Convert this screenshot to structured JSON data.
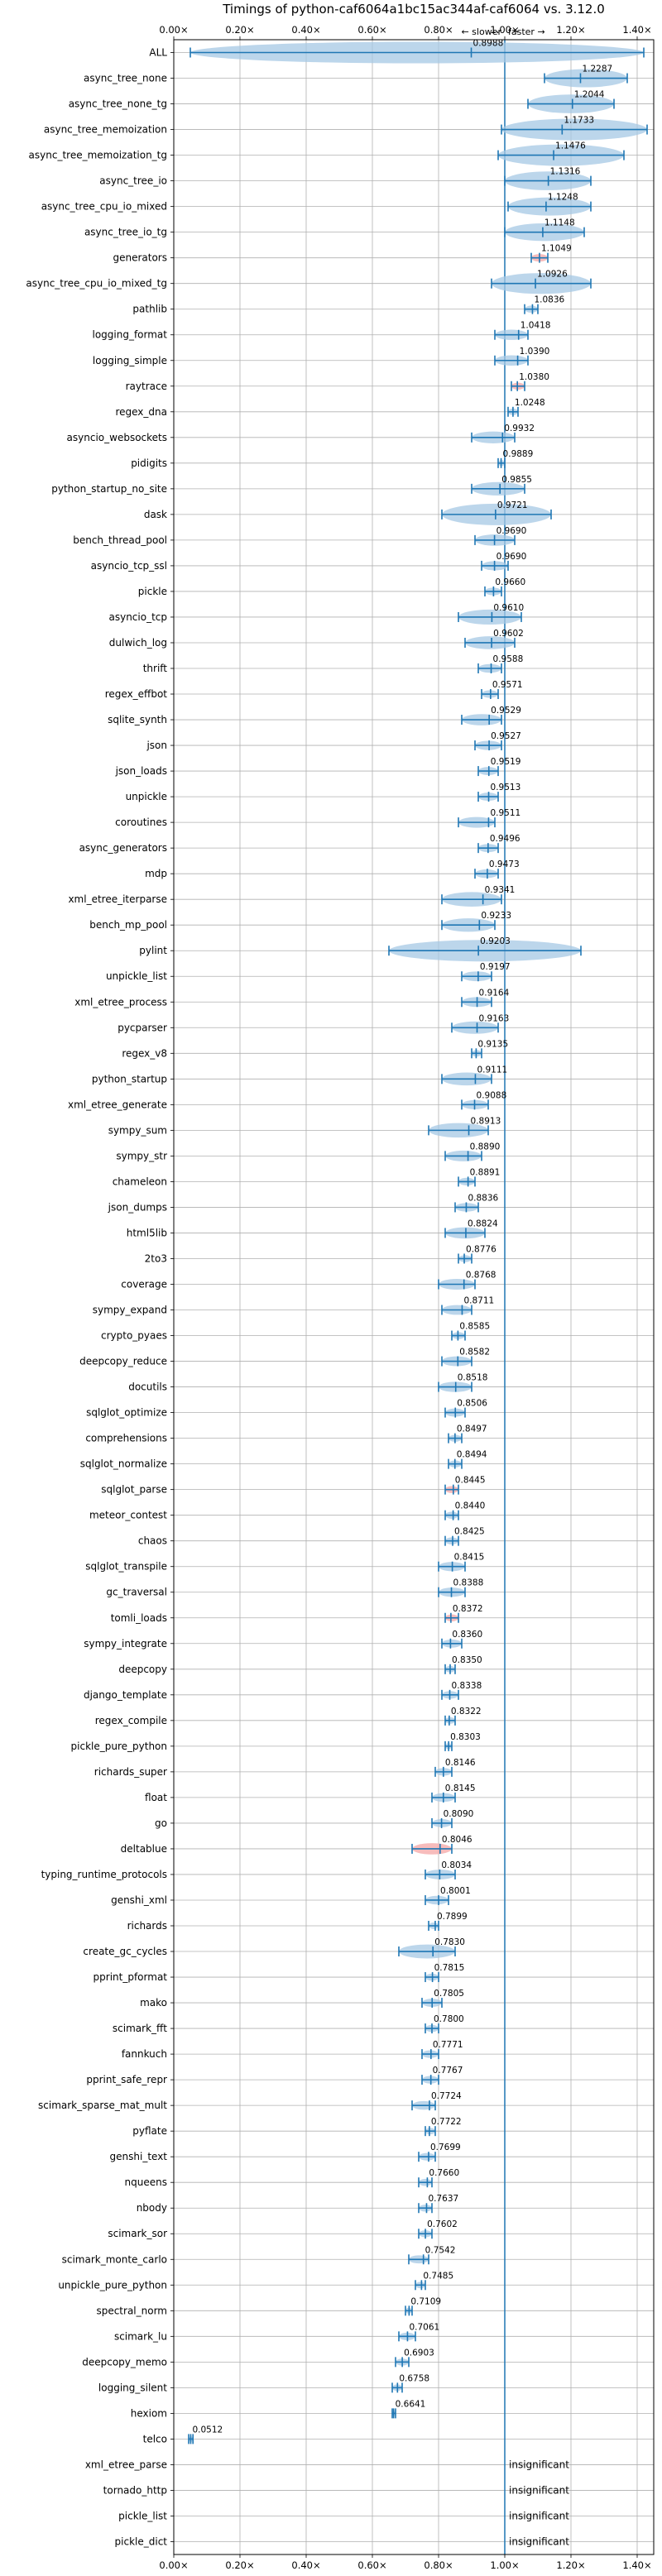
{
  "chart_data": {
    "type": "violin",
    "title": "Timings of python-caf6064a1bc15ac344af-caf6064 vs. 3.12.0",
    "direction_labels": {
      "slower": "← slower",
      "faster": "faster →"
    },
    "xlim": [
      0,
      1.45
    ],
    "xticks": [
      0,
      0.2,
      0.4,
      0.6,
      0.8,
      1.0,
      1.2,
      1.4
    ],
    "xtick_labels": [
      "0.00×",
      "0.20×",
      "0.40×",
      "0.60×",
      "0.80×",
      "1.00×",
      "1.20×",
      "1.40×"
    ],
    "reference_line": 1.0,
    "grid": true,
    "colors": {
      "violin": "#a6c8e4",
      "whisker": "#1f77b4",
      "reference": "#1f77b4",
      "highlight": "#f4a6a6",
      "grid": "#b0b0b0"
    },
    "rows": [
      {
        "label": "ALL",
        "value": 0.8988,
        "value_text": "0.8988",
        "lo": 0.05,
        "hi": 1.42
      },
      {
        "label": "async_tree_none",
        "value": 1.2287,
        "value_text": "1.2287",
        "lo": 1.12,
        "hi": 1.37
      },
      {
        "label": "async_tree_none_tg",
        "value": 1.2044,
        "value_text": "1.2044",
        "lo": 1.07,
        "hi": 1.33
      },
      {
        "label": "async_tree_memoization",
        "value": 1.1733,
        "value_text": "1.1733",
        "lo": 0.99,
        "hi": 1.43
      },
      {
        "label": "async_tree_memoization_tg",
        "value": 1.1476,
        "value_text": "1.1476",
        "lo": 0.98,
        "hi": 1.36
      },
      {
        "label": "async_tree_io",
        "value": 1.1316,
        "value_text": "1.1316",
        "lo": 1.0,
        "hi": 1.26
      },
      {
        "label": "async_tree_cpu_io_mixed",
        "value": 1.1248,
        "value_text": "1.1248",
        "lo": 1.01,
        "hi": 1.26
      },
      {
        "label": "async_tree_io_tg",
        "value": 1.1148,
        "value_text": "1.1148",
        "lo": 1.0,
        "hi": 1.24
      },
      {
        "label": "generators",
        "value": 1.1049,
        "value_text": "1.1049",
        "lo": 1.08,
        "hi": 1.13,
        "highlight": true
      },
      {
        "label": "async_tree_cpu_io_mixed_tg",
        "value": 1.0926,
        "value_text": "1.0926",
        "lo": 0.96,
        "hi": 1.26
      },
      {
        "label": "pathlib",
        "value": 1.0836,
        "value_text": "1.0836",
        "lo": 1.06,
        "hi": 1.1
      },
      {
        "label": "logging_format",
        "value": 1.0418,
        "value_text": "1.0418",
        "lo": 0.97,
        "hi": 1.07
      },
      {
        "label": "logging_simple",
        "value": 1.039,
        "value_text": "1.0390",
        "lo": 0.97,
        "hi": 1.07
      },
      {
        "label": "raytrace",
        "value": 1.038,
        "value_text": "1.0380",
        "lo": 1.02,
        "hi": 1.06,
        "highlight": true
      },
      {
        "label": "regex_dna",
        "value": 1.0248,
        "value_text": "1.0248",
        "lo": 1.01,
        "hi": 1.04
      },
      {
        "label": "asyncio_websockets",
        "value": 0.9932,
        "value_text": "0.9932",
        "lo": 0.9,
        "hi": 1.03
      },
      {
        "label": "pidigits",
        "value": 0.9889,
        "value_text": "0.9889",
        "lo": 0.98,
        "hi": 1.0
      },
      {
        "label": "python_startup_no_site",
        "value": 0.9855,
        "value_text": "0.9855",
        "lo": 0.9,
        "hi": 1.06
      },
      {
        "label": "dask",
        "value": 0.9721,
        "value_text": "0.9721",
        "lo": 0.81,
        "hi": 1.14
      },
      {
        "label": "bench_thread_pool",
        "value": 0.969,
        "value_text": "0.9690",
        "lo": 0.91,
        "hi": 1.03
      },
      {
        "label": "asyncio_tcp_ssl",
        "value": 0.969,
        "value_text": "0.9690",
        "lo": 0.93,
        "hi": 1.01
      },
      {
        "label": "pickle",
        "value": 0.966,
        "value_text": "0.9660",
        "lo": 0.94,
        "hi": 0.99
      },
      {
        "label": "asyncio_tcp",
        "value": 0.961,
        "value_text": "0.9610",
        "lo": 0.86,
        "hi": 1.05
      },
      {
        "label": "dulwich_log",
        "value": 0.9602,
        "value_text": "0.9602",
        "lo": 0.88,
        "hi": 1.03
      },
      {
        "label": "thrift",
        "value": 0.9588,
        "value_text": "0.9588",
        "lo": 0.92,
        "hi": 0.99
      },
      {
        "label": "regex_effbot",
        "value": 0.9571,
        "value_text": "0.9571",
        "lo": 0.93,
        "hi": 0.98
      },
      {
        "label": "sqlite_synth",
        "value": 0.9529,
        "value_text": "0.9529",
        "lo": 0.87,
        "hi": 0.99
      },
      {
        "label": "json",
        "value": 0.9527,
        "value_text": "0.9527",
        "lo": 0.91,
        "hi": 0.99
      },
      {
        "label": "json_loads",
        "value": 0.9519,
        "value_text": "0.9519",
        "lo": 0.92,
        "hi": 0.98
      },
      {
        "label": "unpickle",
        "value": 0.9513,
        "value_text": "0.9513",
        "lo": 0.92,
        "hi": 0.98
      },
      {
        "label": "coroutines",
        "value": 0.9511,
        "value_text": "0.9511",
        "lo": 0.86,
        "hi": 0.97
      },
      {
        "label": "async_generators",
        "value": 0.9496,
        "value_text": "0.9496",
        "lo": 0.92,
        "hi": 0.98
      },
      {
        "label": "mdp",
        "value": 0.9473,
        "value_text": "0.9473",
        "lo": 0.91,
        "hi": 0.98
      },
      {
        "label": "xml_etree_iterparse",
        "value": 0.9341,
        "value_text": "0.9341",
        "lo": 0.81,
        "hi": 0.99
      },
      {
        "label": "bench_mp_pool",
        "value": 0.9233,
        "value_text": "0.9233",
        "lo": 0.81,
        "hi": 0.97
      },
      {
        "label": "pylint",
        "value": 0.9203,
        "value_text": "0.9203",
        "lo": 0.65,
        "hi": 1.23
      },
      {
        "label": "unpickle_list",
        "value": 0.9197,
        "value_text": "0.9197",
        "lo": 0.87,
        "hi": 0.96
      },
      {
        "label": "xml_etree_process",
        "value": 0.9164,
        "value_text": "0.9164",
        "lo": 0.87,
        "hi": 0.96
      },
      {
        "label": "pycparser",
        "value": 0.9163,
        "value_text": "0.9163",
        "lo": 0.84,
        "hi": 0.98
      },
      {
        "label": "regex_v8",
        "value": 0.9135,
        "value_text": "0.9135",
        "lo": 0.9,
        "hi": 0.93
      },
      {
        "label": "python_startup",
        "value": 0.9111,
        "value_text": "0.9111",
        "lo": 0.81,
        "hi": 0.96
      },
      {
        "label": "xml_etree_generate",
        "value": 0.9088,
        "value_text": "0.9088",
        "lo": 0.87,
        "hi": 0.95
      },
      {
        "label": "sympy_sum",
        "value": 0.8913,
        "value_text": "0.8913",
        "lo": 0.77,
        "hi": 0.95
      },
      {
        "label": "sympy_str",
        "value": 0.889,
        "value_text": "0.8890",
        "lo": 0.82,
        "hi": 0.93
      },
      {
        "label": "chameleon",
        "value": 0.8891,
        "value_text": "0.8891",
        "lo": 0.86,
        "hi": 0.91
      },
      {
        "label": "json_dumps",
        "value": 0.8836,
        "value_text": "0.8836",
        "lo": 0.85,
        "hi": 0.92
      },
      {
        "label": "html5lib",
        "value": 0.8824,
        "value_text": "0.8824",
        "lo": 0.82,
        "hi": 0.94
      },
      {
        "label": "2to3",
        "value": 0.8776,
        "value_text": "0.8776",
        "lo": 0.86,
        "hi": 0.9
      },
      {
        "label": "coverage",
        "value": 0.8768,
        "value_text": "0.8768",
        "lo": 0.8,
        "hi": 0.91
      },
      {
        "label": "sympy_expand",
        "value": 0.8711,
        "value_text": "0.8711",
        "lo": 0.81,
        "hi": 0.9
      },
      {
        "label": "crypto_pyaes",
        "value": 0.8585,
        "value_text": "0.8585",
        "lo": 0.84,
        "hi": 0.88
      },
      {
        "label": "deepcopy_reduce",
        "value": 0.8582,
        "value_text": "0.8582",
        "lo": 0.81,
        "hi": 0.9
      },
      {
        "label": "docutils",
        "value": 0.8518,
        "value_text": "0.8518",
        "lo": 0.8,
        "hi": 0.9
      },
      {
        "label": "sqlglot_optimize",
        "value": 0.8506,
        "value_text": "0.8506",
        "lo": 0.82,
        "hi": 0.88
      },
      {
        "label": "comprehensions",
        "value": 0.8497,
        "value_text": "0.8497",
        "lo": 0.83,
        "hi": 0.87
      },
      {
        "label": "sqlglot_normalize",
        "value": 0.8494,
        "value_text": "0.8494",
        "lo": 0.83,
        "hi": 0.87
      },
      {
        "label": "sqlglot_parse",
        "value": 0.8445,
        "value_text": "0.8445",
        "lo": 0.82,
        "hi": 0.86,
        "highlight": true
      },
      {
        "label": "meteor_contest",
        "value": 0.844,
        "value_text": "0.8440",
        "lo": 0.82,
        "hi": 0.86
      },
      {
        "label": "chaos",
        "value": 0.8425,
        "value_text": "0.8425",
        "lo": 0.82,
        "hi": 0.86
      },
      {
        "label": "sqlglot_transpile",
        "value": 0.8415,
        "value_text": "0.8415",
        "lo": 0.8,
        "hi": 0.88
      },
      {
        "label": "gc_traversal",
        "value": 0.8388,
        "value_text": "0.8388",
        "lo": 0.8,
        "hi": 0.88
      },
      {
        "label": "tomli_loads",
        "value": 0.8372,
        "value_text": "0.8372",
        "lo": 0.82,
        "hi": 0.86,
        "highlight": true
      },
      {
        "label": "sympy_integrate",
        "value": 0.836,
        "value_text": "0.8360",
        "lo": 0.81,
        "hi": 0.87
      },
      {
        "label": "deepcopy",
        "value": 0.835,
        "value_text": "0.8350",
        "lo": 0.82,
        "hi": 0.85
      },
      {
        "label": "django_template",
        "value": 0.8338,
        "value_text": "0.8338",
        "lo": 0.81,
        "hi": 0.86
      },
      {
        "label": "regex_compile",
        "value": 0.8322,
        "value_text": "0.8322",
        "lo": 0.82,
        "hi": 0.85
      },
      {
        "label": "pickle_pure_python",
        "value": 0.8303,
        "value_text": "0.8303",
        "lo": 0.82,
        "hi": 0.84
      },
      {
        "label": "richards_super",
        "value": 0.8146,
        "value_text": "0.8146",
        "lo": 0.79,
        "hi": 0.84
      },
      {
        "label": "float",
        "value": 0.8145,
        "value_text": "0.8145",
        "lo": 0.78,
        "hi": 0.85
      },
      {
        "label": "go",
        "value": 0.809,
        "value_text": "0.8090",
        "lo": 0.78,
        "hi": 0.84
      },
      {
        "label": "deltablue",
        "value": 0.8046,
        "value_text": "0.8046",
        "lo": 0.72,
        "hi": 0.84,
        "highlight": true
      },
      {
        "label": "typing_runtime_protocols",
        "value": 0.8034,
        "value_text": "0.8034",
        "lo": 0.76,
        "hi": 0.85
      },
      {
        "label": "genshi_xml",
        "value": 0.8001,
        "value_text": "0.8001",
        "lo": 0.76,
        "hi": 0.83
      },
      {
        "label": "richards",
        "value": 0.7899,
        "value_text": "0.7899",
        "lo": 0.77,
        "hi": 0.8
      },
      {
        "label": "create_gc_cycles",
        "value": 0.783,
        "value_text": "0.7830",
        "lo": 0.68,
        "hi": 0.85
      },
      {
        "label": "pprint_pformat",
        "value": 0.7815,
        "value_text": "0.7815",
        "lo": 0.76,
        "hi": 0.8
      },
      {
        "label": "mako",
        "value": 0.7805,
        "value_text": "0.7805",
        "lo": 0.75,
        "hi": 0.81
      },
      {
        "label": "scimark_fft",
        "value": 0.78,
        "value_text": "0.7800",
        "lo": 0.76,
        "hi": 0.8
      },
      {
        "label": "fannkuch",
        "value": 0.7771,
        "value_text": "0.7771",
        "lo": 0.75,
        "hi": 0.8
      },
      {
        "label": "pprint_safe_repr",
        "value": 0.7767,
        "value_text": "0.7767",
        "lo": 0.75,
        "hi": 0.8
      },
      {
        "label": "scimark_sparse_mat_mult",
        "value": 0.7724,
        "value_text": "0.7724",
        "lo": 0.72,
        "hi": 0.79
      },
      {
        "label": "pyflate",
        "value": 0.7722,
        "value_text": "0.7722",
        "lo": 0.76,
        "hi": 0.79
      },
      {
        "label": "genshi_text",
        "value": 0.7699,
        "value_text": "0.7699",
        "lo": 0.74,
        "hi": 0.79
      },
      {
        "label": "nqueens",
        "value": 0.766,
        "value_text": "0.7660",
        "lo": 0.74,
        "hi": 0.78
      },
      {
        "label": "nbody",
        "value": 0.7637,
        "value_text": "0.7637",
        "lo": 0.74,
        "hi": 0.78
      },
      {
        "label": "scimark_sor",
        "value": 0.7602,
        "value_text": "0.7602",
        "lo": 0.74,
        "hi": 0.78
      },
      {
        "label": "scimark_monte_carlo",
        "value": 0.7542,
        "value_text": "0.7542",
        "lo": 0.71,
        "hi": 0.77
      },
      {
        "label": "unpickle_pure_python",
        "value": 0.7485,
        "value_text": "0.7485",
        "lo": 0.73,
        "hi": 0.76
      },
      {
        "label": "spectral_norm",
        "value": 0.7109,
        "value_text": "0.7109",
        "lo": 0.7,
        "hi": 0.72
      },
      {
        "label": "scimark_lu",
        "value": 0.7061,
        "value_text": "0.7061",
        "lo": 0.68,
        "hi": 0.73
      },
      {
        "label": "deepcopy_memo",
        "value": 0.6903,
        "value_text": "0.6903",
        "lo": 0.67,
        "hi": 0.71
      },
      {
        "label": "logging_silent",
        "value": 0.6758,
        "value_text": "0.6758",
        "lo": 0.66,
        "hi": 0.69
      },
      {
        "label": "hexiom",
        "value": 0.6641,
        "value_text": "0.6641",
        "lo": 0.66,
        "hi": 0.67
      },
      {
        "label": "telco",
        "value": 0.0512,
        "value_text": "0.0512",
        "lo": 0.045,
        "hi": 0.058
      },
      {
        "label": "xml_etree_parse",
        "insignificant": "insignificant"
      },
      {
        "label": "tornado_http",
        "insignificant": "insignificant"
      },
      {
        "label": "pickle_list",
        "insignificant": "insignificant"
      },
      {
        "label": "pickle_dict",
        "insignificant": "insignificant"
      }
    ]
  }
}
